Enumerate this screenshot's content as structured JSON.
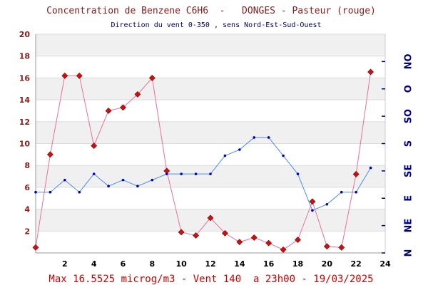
{
  "chart_data": {
    "type": "line",
    "title": "Concentration de Benzene C6H6  -   DONGES - Pasteur (rouge)",
    "subtitle": "Direction du vent 0-350 , sens Nord-Est-Sud-Ouest",
    "footer": "Max 16.5525 microg/m3 - Vent 140  a 23h00 - 19/03/2025",
    "xlim": [
      0,
      24
    ],
    "x_ticks": [
      2,
      4,
      6,
      8,
      10,
      12,
      14,
      16,
      18,
      20,
      22,
      24
    ],
    "ylim": [
      0,
      20
    ],
    "y_ticks": [
      2,
      4,
      6,
      8,
      10,
      12,
      14,
      16,
      18,
      20
    ],
    "right_axis_ylim": [
      0,
      360
    ],
    "right_axis_labels": [
      {
        "value": 0,
        "label": "N"
      },
      {
        "value": 45,
        "label": "NE"
      },
      {
        "value": 90,
        "label": "E"
      },
      {
        "value": 135,
        "label": "SE"
      },
      {
        "value": 180,
        "label": "S"
      },
      {
        "value": 225,
        "label": "SO"
      },
      {
        "value": 270,
        "label": "O"
      },
      {
        "value": 315,
        "label": "NO"
      }
    ],
    "series": [
      {
        "axis": "left",
        "color": "#e8709a",
        "marker_color": "#cc1111",
        "marker": "diamond",
        "x": [
          0,
          1,
          2,
          3,
          4,
          5,
          6,
          7,
          8,
          9,
          10,
          11,
          12,
          13,
          14,
          15,
          16,
          17,
          18,
          19,
          20,
          21,
          22,
          23
        ],
        "values": [
          0.5,
          9.0,
          16.2,
          16.2,
          9.8,
          13.0,
          13.3,
          14.5,
          16.0,
          7.5,
          1.9,
          1.6,
          3.2,
          1.8,
          1.0,
          1.4,
          0.9,
          0.3,
          1.2,
          4.7,
          0.6,
          0.5,
          7.2,
          16.55
        ]
      },
      {
        "axis": "right",
        "color": "#4a90e2",
        "marker_color": "#0000cc",
        "marker": "dot",
        "x": [
          0,
          1,
          2,
          3,
          4,
          5,
          6,
          7,
          8,
          9,
          10,
          11,
          12,
          13,
          14,
          15,
          16,
          17,
          18,
          19,
          20,
          21,
          22,
          23
        ],
        "values": [
          100,
          100,
          120,
          100,
          130,
          110,
          120,
          110,
          120,
          130,
          130,
          130,
          130,
          160,
          170,
          190,
          190,
          160,
          130,
          70,
          80,
          100,
          100,
          140
        ]
      }
    ],
    "colors": {
      "band_light": "#f0f0f0",
      "band_white": "#ffffff",
      "grid": "#dcdcdc",
      "left_axis_text": "#8b1a1a",
      "right_axis_text": "#000080",
      "footer_text": "#d40000"
    }
  }
}
